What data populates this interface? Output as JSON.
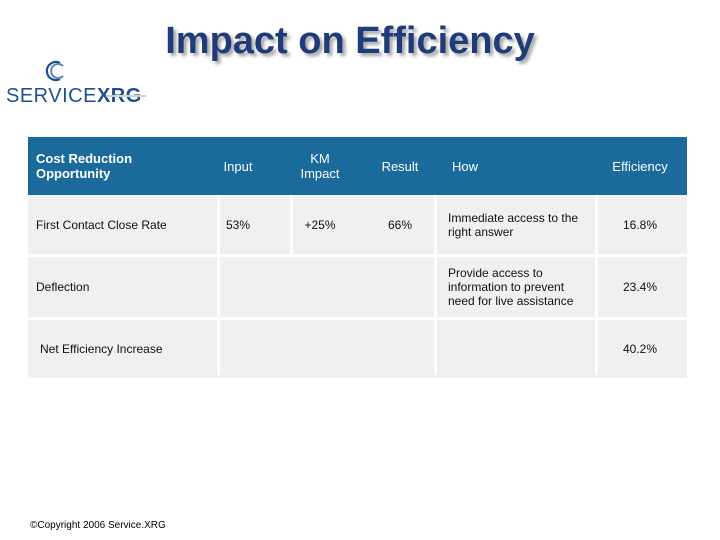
{
  "title": "Impact on Efficiency",
  "logo": {
    "prefix": "SERVICE",
    "suffix": "XRG",
    "icon": "servicexrg-c-logo-icon"
  },
  "table": {
    "headers": {
      "opportunity": "Cost Reduction Opportunity",
      "input": "Input",
      "km_impact": "KM Impact",
      "result": "Result",
      "how": "How",
      "efficiency": "Efficiency"
    },
    "rows": [
      {
        "opportunity": "First Contact Close Rate",
        "input": "53%",
        "km_impact": "+25%",
        "result": "66%",
        "how": "Immediate access to the right answer",
        "efficiency": "16.8%"
      },
      {
        "opportunity": "Deflection",
        "input": "",
        "km_impact": "",
        "result": "",
        "how": "Provide access to information to prevent need for live assistance",
        "efficiency": "23.4%"
      },
      {
        "opportunity": "Net Efficiency Increase",
        "input": "",
        "km_impact": "",
        "result": "",
        "how": "",
        "efficiency": "40.2%"
      }
    ]
  },
  "copyright": "©Copyright 2006 Service.XRG",
  "colors": {
    "header_bg": "#1b6a9c",
    "row_bg": "#f0f0f0",
    "title": "#1f3b7a"
  }
}
